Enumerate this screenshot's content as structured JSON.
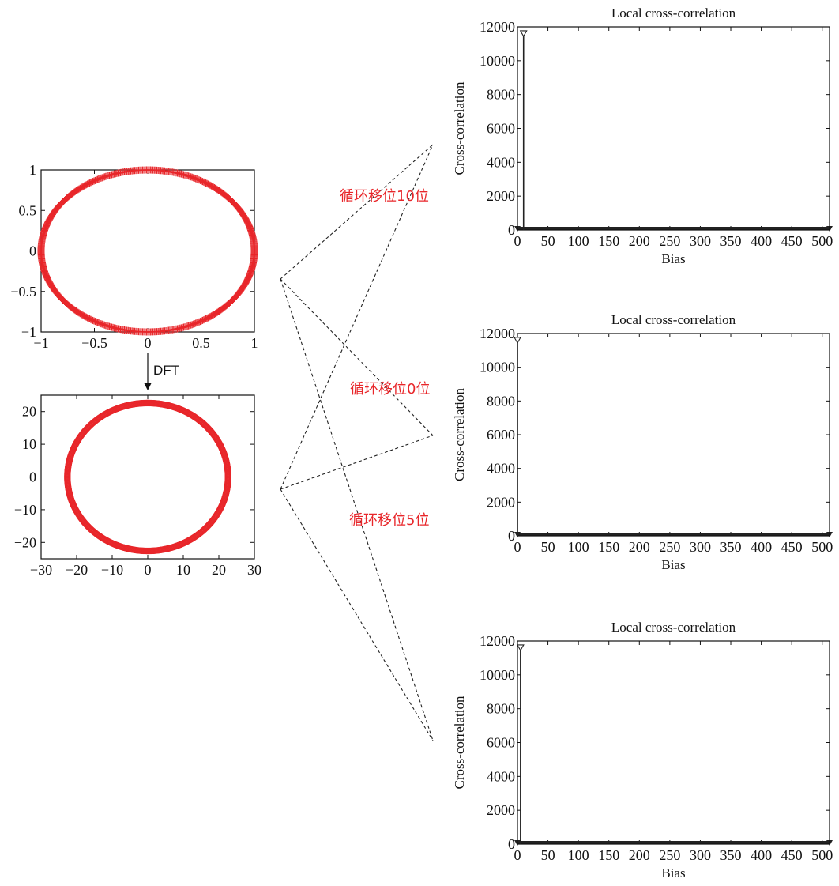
{
  "colors": {
    "marker": "#e8262a",
    "axis": "#111111",
    "stem": "#222222",
    "label": "#e8262a"
  },
  "left": {
    "arrow_label": "DFT"
  },
  "shift_labels": [
    "循环移位10位",
    "循环移位0位",
    "循环移位5位"
  ],
  "chart_data": [
    {
      "id": "constellation-plus",
      "type": "scatter",
      "title": "",
      "xlabel": "",
      "ylabel": "",
      "marker": "+",
      "shape": "unit circle",
      "n_points": 512,
      "radius": 1,
      "xlim": [
        -1,
        1
      ],
      "ylim": [
        -1,
        1
      ],
      "x_ticks": [
        "-1",
        "-0.5",
        "0",
        "0.5",
        "1"
      ],
      "x_tick_values": [
        -1,
        -0.5,
        0,
        0.5,
        1
      ],
      "y_ticks": [
        "1",
        "0.5",
        "0",
        "-0.5",
        "-1"
      ],
      "y_tick_values": [
        1,
        0.5,
        0,
        -0.5,
        -1
      ]
    },
    {
      "id": "constellation-dft",
      "type": "scatter",
      "title": "",
      "xlabel": "",
      "ylabel": "",
      "marker": "o",
      "shape": "circle",
      "n_points": 512,
      "radius": 22.6,
      "xlim": [
        -30,
        30
      ],
      "ylim": [
        -25,
        25
      ],
      "x_ticks": [
        "-30",
        "-20",
        "-10",
        "0",
        "10",
        "20",
        "30"
      ],
      "x_tick_values": [
        -30,
        -20,
        -10,
        0,
        10,
        20,
        30
      ],
      "y_ticks": [
        "20",
        "10",
        "0",
        "-10",
        "-20"
      ],
      "y_tick_values": [
        20,
        10,
        0,
        -10,
        -20
      ]
    },
    {
      "id": "xcorr-top",
      "type": "stem",
      "title": "Local cross-correlation",
      "xlabel": "Bias",
      "ylabel": "Cross-correlation",
      "xlim": [
        0,
        512
      ],
      "ylim": [
        0,
        12000
      ],
      "x_ticks": [
        "0",
        "50",
        "100",
        "150",
        "200",
        "250",
        "300",
        "350",
        "400",
        "450",
        "500"
      ],
      "x_tick_values": [
        0,
        50,
        100,
        150,
        200,
        250,
        300,
        350,
        400,
        450,
        500
      ],
      "y_ticks": [
        "12000",
        "10000",
        "8000",
        "6000",
        "4000",
        "2000",
        "0"
      ],
      "y_tick_values": [
        12000,
        10000,
        8000,
        6000,
        4000,
        2000,
        0
      ],
      "peak": {
        "bias": 10,
        "value": 11585
      },
      "baseline_value": 0
    },
    {
      "id": "xcorr-middle",
      "type": "stem",
      "title": "Local cross-correlation",
      "xlabel": "Bias",
      "ylabel": "Cross-correlation",
      "xlim": [
        0,
        512
      ],
      "ylim": [
        0,
        12000
      ],
      "x_ticks": [
        "0",
        "50",
        "100",
        "150",
        "200",
        "250",
        "300",
        "350",
        "400",
        "450",
        "500"
      ],
      "x_tick_values": [
        0,
        50,
        100,
        150,
        200,
        250,
        300,
        350,
        400,
        450,
        500
      ],
      "y_ticks": [
        "12000",
        "10000",
        "8000",
        "6000",
        "4000",
        "2000",
        "0"
      ],
      "y_tick_values": [
        12000,
        10000,
        8000,
        6000,
        4000,
        2000,
        0
      ],
      "peak": {
        "bias": 0,
        "value": 11585
      },
      "baseline_value": 0
    },
    {
      "id": "xcorr-bottom",
      "type": "stem",
      "title": "Local cross-correlation",
      "xlabel": "Bias",
      "ylabel": "Cross-correlation",
      "xlim": [
        0,
        512
      ],
      "ylim": [
        0,
        12000
      ],
      "x_ticks": [
        "0",
        "50",
        "100",
        "150",
        "200",
        "250",
        "300",
        "350",
        "400",
        "450",
        "500"
      ],
      "x_tick_values": [
        0,
        50,
        100,
        150,
        200,
        250,
        300,
        350,
        400,
        450,
        500
      ],
      "y_ticks": [
        "12000",
        "10000",
        "8000",
        "6000",
        "4000",
        "2000",
        "0"
      ],
      "y_tick_values": [
        12000,
        10000,
        8000,
        6000,
        4000,
        2000,
        0
      ],
      "peak": {
        "bias": 5,
        "value": 11585
      },
      "baseline_value": 0
    }
  ]
}
